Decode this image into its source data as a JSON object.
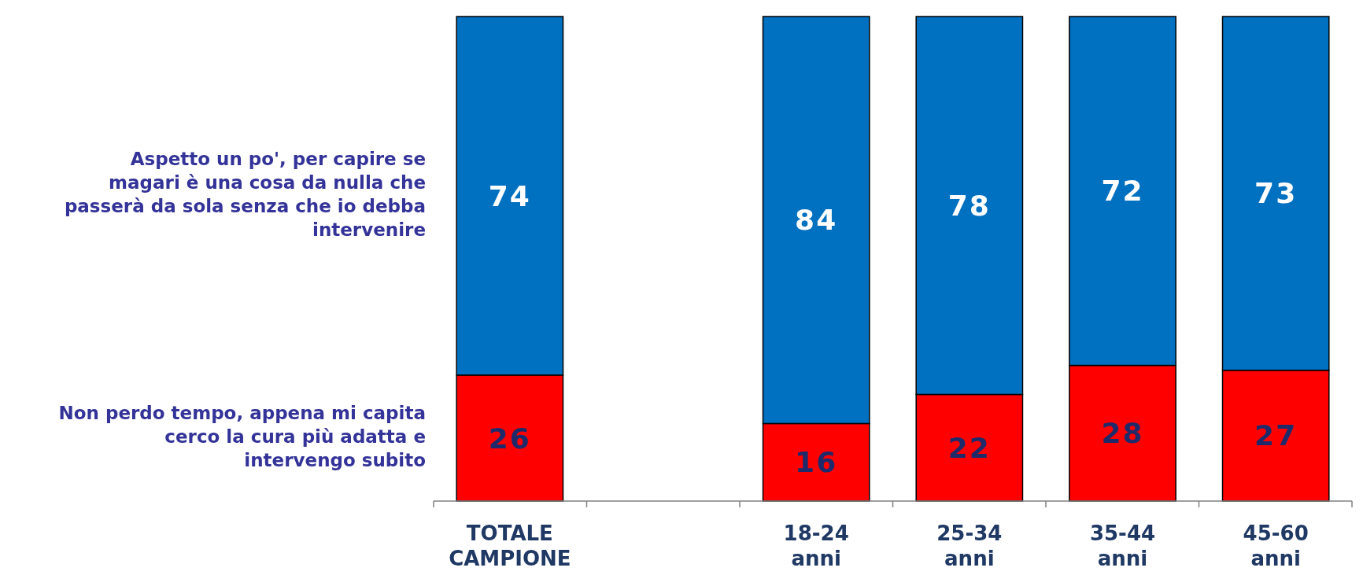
{
  "chart_data": {
    "type": "bar",
    "stacked": true,
    "categories": [
      "TOTALE CAMPIONE",
      null,
      "18-24 anni",
      "25-34 anni",
      "35-44 anni",
      "45-60 anni"
    ],
    "series": [
      {
        "name": "Non perdo tempo, appena mi capita cerco la cura più adatta e intervengo subito",
        "color": "#ff0000",
        "values": [
          26,
          null,
          16,
          22,
          28,
          27
        ]
      },
      {
        "name": "Aspetto un po', per capire se magari è  una cosa da nulla che passerà da sola senza che io debba intervenire",
        "color": "#0070c0",
        "values": [
          74,
          null,
          84,
          78,
          72,
          73
        ]
      }
    ],
    "ylim": [
      0,
      100
    ],
    "tick_labels": "x",
    "data_labels": true
  }
}
